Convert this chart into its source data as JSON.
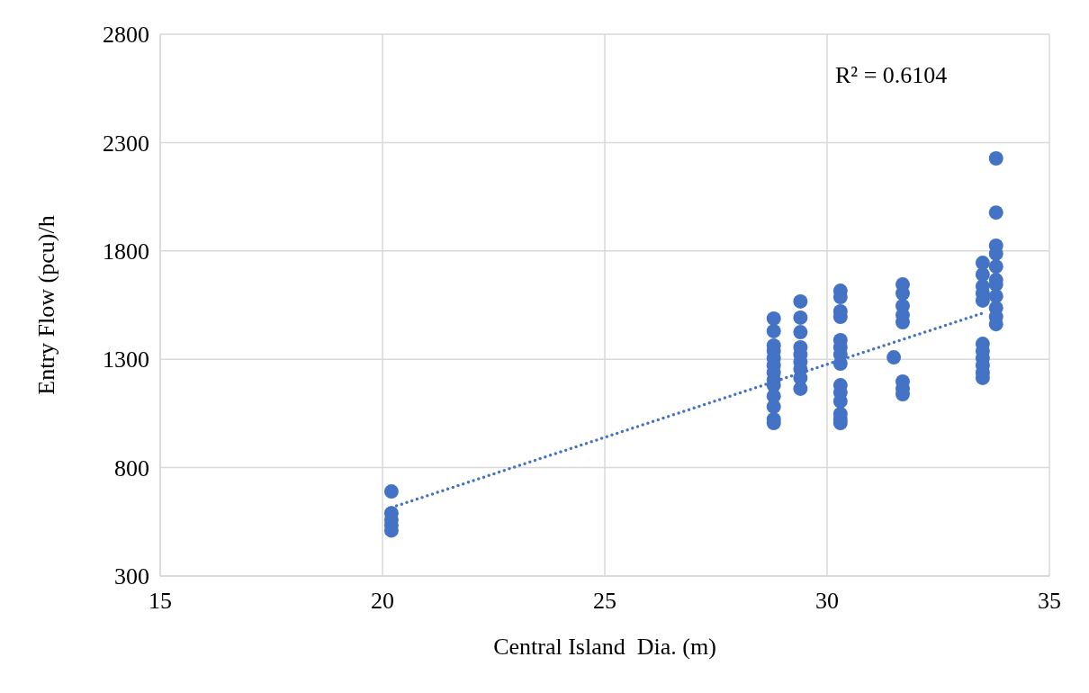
{
  "chart_data": {
    "type": "scatter",
    "xlabel": "Central Island  Dia. (m)",
    "ylabel": "Entry Flow (pcu)/h",
    "xlim": [
      15,
      35
    ],
    "xticks": [
      15,
      20,
      25,
      30,
      35
    ],
    "ylim": [
      300,
      2800
    ],
    "yticks": [
      300,
      800,
      1300,
      1800,
      2300,
      2800
    ],
    "grid": true,
    "annotations": [
      "R² = 0.6104"
    ],
    "series": [
      {
        "color": "#4472c4",
        "marker": "circle",
        "x": [
          20.2,
          20.2,
          20.2,
          20.2,
          20.2,
          28.8,
          28.8,
          28.8,
          28.8,
          28.8,
          28.8,
          28.8,
          28.8,
          28.8,
          28.8,
          28.8,
          28.8,
          28.8,
          29.4,
          29.4,
          29.4,
          29.4,
          29.4,
          29.4,
          29.4,
          29.4,
          29.4,
          30.3,
          30.3,
          30.3,
          30.3,
          30.3,
          30.3,
          30.3,
          30.3,
          30.3,
          30.3,
          30.3,
          30.3,
          30.3,
          30.3,
          31.5,
          31.7,
          31.7,
          31.7,
          31.7,
          31.7,
          31.7,
          31.7,
          31.7,
          33.5,
          33.5,
          33.5,
          33.5,
          33.5,
          33.5,
          33.5,
          33.5,
          33.5,
          33.5,
          33.5,
          33.8,
          33.8,
          33.8,
          33.8,
          33.8,
          33.8,
          33.8,
          33.8,
          33.8,
          33.8,
          33.8
        ],
        "values": [
          690,
          590,
          560,
          535,
          510,
          1488,
          1430,
          1363,
          1338,
          1305,
          1272,
          1239,
          1205,
          1180,
          1130,
          1081,
          1023,
          1006,
          1567,
          1492,
          1425,
          1355,
          1322,
          1288,
          1255,
          1214,
          1164,
          1616,
          1587,
          1521,
          1496,
          1388,
          1355,
          1322,
          1280,
          1180,
          1147,
          1106,
          1048,
          1023,
          1006,
          1309,
          1645,
          1604,
          1546,
          1504,
          1471,
          1197,
          1164,
          1139,
          1745,
          1691,
          1637,
          1604,
          1571,
          1371,
          1338,
          1305,
          1272,
          1239,
          1214,
          2227,
          1977,
          1824,
          1787,
          1728,
          1666,
          1645,
          1591,
          1537,
          1496,
          1462
        ]
      },
      {
        "type": "line",
        "color": "#4472c4",
        "line_style": "dotted",
        "x": [
          20.2,
          33.5
        ],
        "values": [
          616,
          1513
        ]
      }
    ]
  }
}
